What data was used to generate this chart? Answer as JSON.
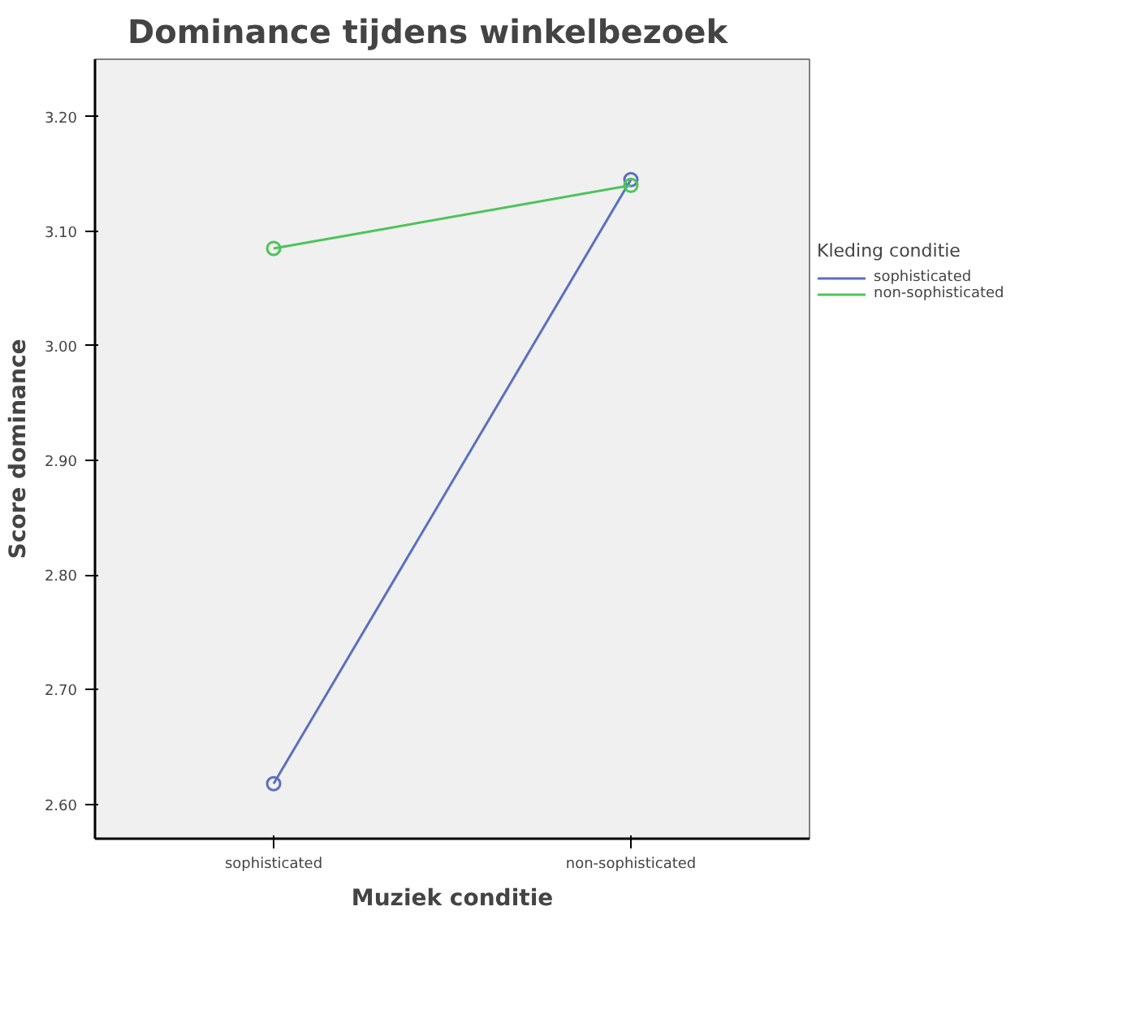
{
  "chart_data": {
    "type": "line",
    "title": "Dominance tijdens winkelbezoek",
    "xlabel": "Muziek conditie",
    "ylabel": "Score dominance",
    "legend_title": "Kleding conditie",
    "categories": [
      "sophisticated",
      "non-sophisticated"
    ],
    "series": [
      {
        "name": "sophisticated",
        "color": "#5b6fbf",
        "values": [
          2.618,
          3.145
        ]
      },
      {
        "name": "non-sophisticated",
        "color": "#4cc45a",
        "values": [
          3.085,
          3.14
        ]
      }
    ],
    "ylim": [
      2.57,
      3.25
    ],
    "yticks": [
      {
        "value": 2.6,
        "label": "2.60"
      },
      {
        "value": 2.7,
        "label": "2.70"
      },
      {
        "value": 2.8,
        "label": "2.80"
      },
      {
        "value": 2.9,
        "label": "2.90"
      },
      {
        "value": 3.0,
        "label": "3.00"
      },
      {
        "value": 3.1,
        "label": "3.10"
      },
      {
        "value": 3.2,
        "label": "3.20"
      }
    ],
    "grid": false,
    "legend": "right",
    "marker": "circle",
    "line_style": "solid"
  }
}
